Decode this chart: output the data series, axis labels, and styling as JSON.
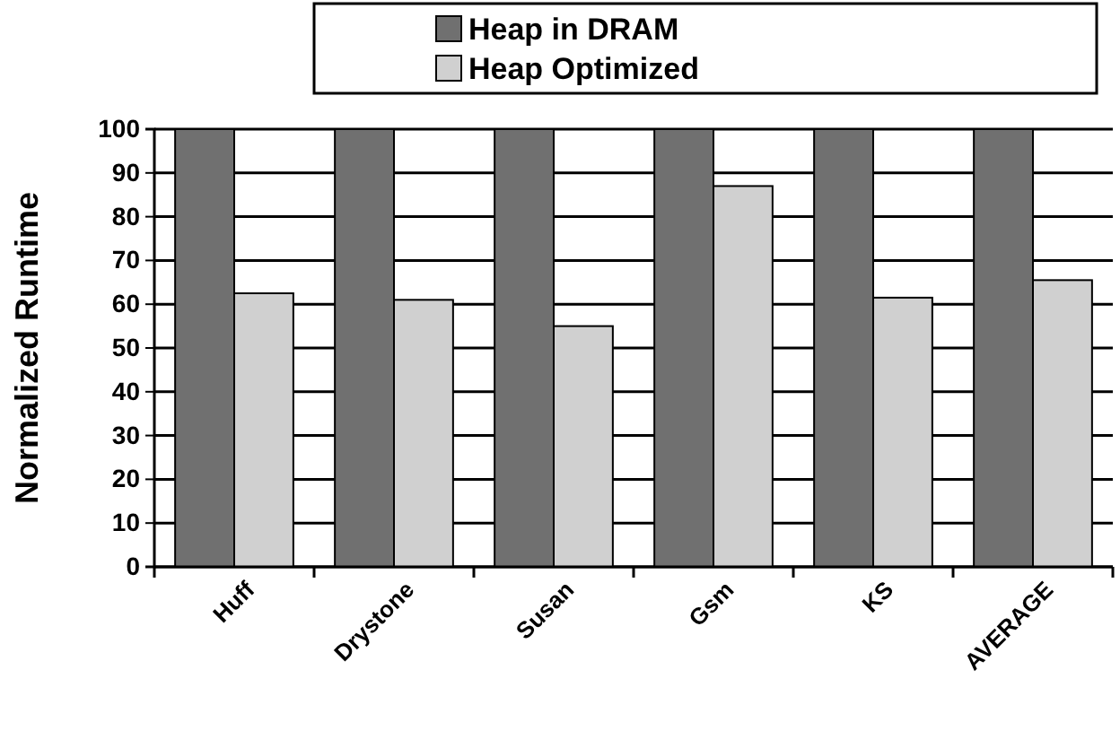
{
  "chart_data": {
    "type": "bar",
    "ylabel": "Normalized Runtime",
    "categories": [
      "Huff",
      "Drystone",
      "Susan",
      "Gsm",
      "KS",
      "AVERAGE"
    ],
    "series": [
      {
        "name": "Heap in DRAM",
        "color": "#707070",
        "values": [
          100,
          100,
          100,
          100,
          100,
          100
        ]
      },
      {
        "name": "Heap Optimized",
        "color": "#d0d0d0",
        "values": [
          62.5,
          61,
          55,
          87,
          61.5,
          65.5
        ]
      }
    ],
    "ylim": [
      0,
      100
    ],
    "yticks": [
      0,
      10,
      20,
      30,
      40,
      50,
      60,
      70,
      80,
      90,
      100
    ],
    "grid": "y",
    "legend": "top"
  }
}
